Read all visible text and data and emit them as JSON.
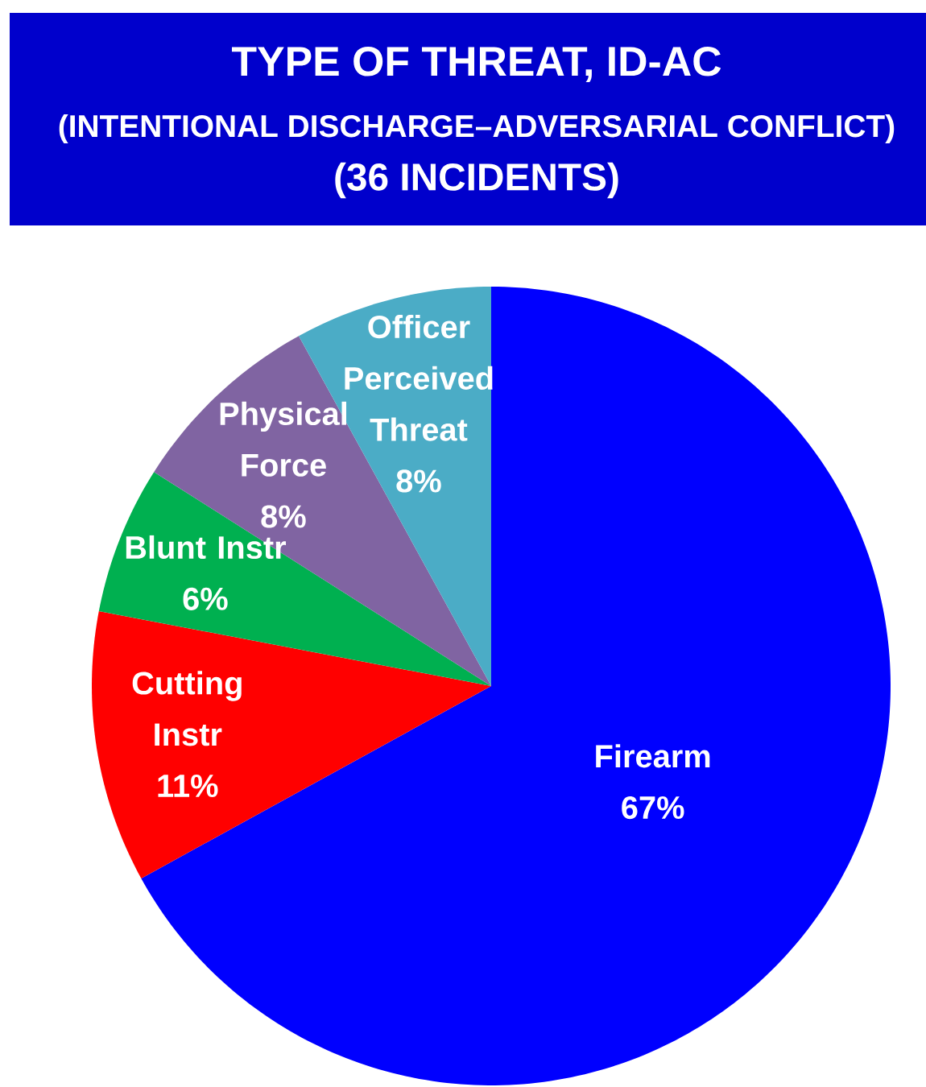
{
  "chart_data": {
    "type": "pie",
    "title": "TYPE OF THREAT, ID-AC",
    "subtitle": "(INTENTIONAL DISCHARGE–ADVERSARIAL CONFLICT)",
    "annotations": [
      "(36 INCIDENTS)"
    ],
    "categories": [
      "Firearm",
      "Cutting Instr",
      "Blunt Instr",
      "Physical Force",
      "Officer Perceived Threat"
    ],
    "values": [
      67,
      11,
      6,
      8,
      8
    ],
    "value_labels": [
      "67%",
      "11%",
      "6%",
      "8%",
      "8%"
    ],
    "colors": [
      "#0000ff",
      "#ff0000",
      "#00b050",
      "#8064a2",
      "#4bacc6"
    ]
  }
}
